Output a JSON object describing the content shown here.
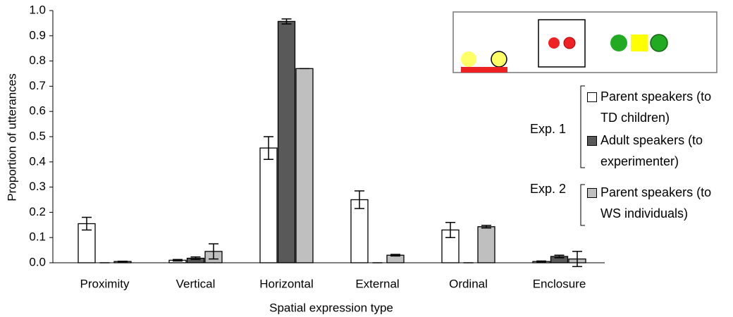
{
  "chart_data": {
    "type": "bar",
    "x_label": "Spatial expression type",
    "y_label": "Proportion of utterances",
    "categories": [
      "Proximity",
      "Vertical",
      "Horizontal",
      "External",
      "Ordinal",
      "Enclosure"
    ],
    "series": [
      {
        "name": "Parent speakers (to TD children)",
        "color": "#ffffff",
        "values": [
          0.155,
          0.01,
          0.455,
          0.25,
          0.13,
          0.005
        ],
        "errors": [
          0.025,
          0.003,
          0.045,
          0.035,
          0.03,
          0.002
        ]
      },
      {
        "name": "Adult speakers (to experimenter)",
        "color": "#595959",
        "values": [
          0,
          0.018,
          0.957,
          0,
          0,
          0.025
        ],
        "errors": [
          0,
          0.005,
          0.01,
          0,
          0,
          0.005
        ]
      },
      {
        "name": "Parent speakers (to WS individuals)",
        "color": "#bfbfbf",
        "values": [
          0.005,
          0.045,
          0.77,
          0.03,
          0.143,
          0.015
        ],
        "errors": [
          0.001,
          0.03,
          0,
          0.003,
          0.005,
          0.03
        ]
      }
    ],
    "legend_groups": [
      "Exp. 1",
      "Exp. 2"
    ],
    "ylim": [
      0,
      1
    ],
    "yticks": [
      {
        "value": 0,
        "label": "0.0"
      },
      0.1,
      0.2,
      0.3,
      0.4,
      0.5,
      0.6,
      0.7,
      0.8,
      0.9,
      {
        "value": 1,
        "label": "1.0"
      }
    ],
    "grid": false
  }
}
